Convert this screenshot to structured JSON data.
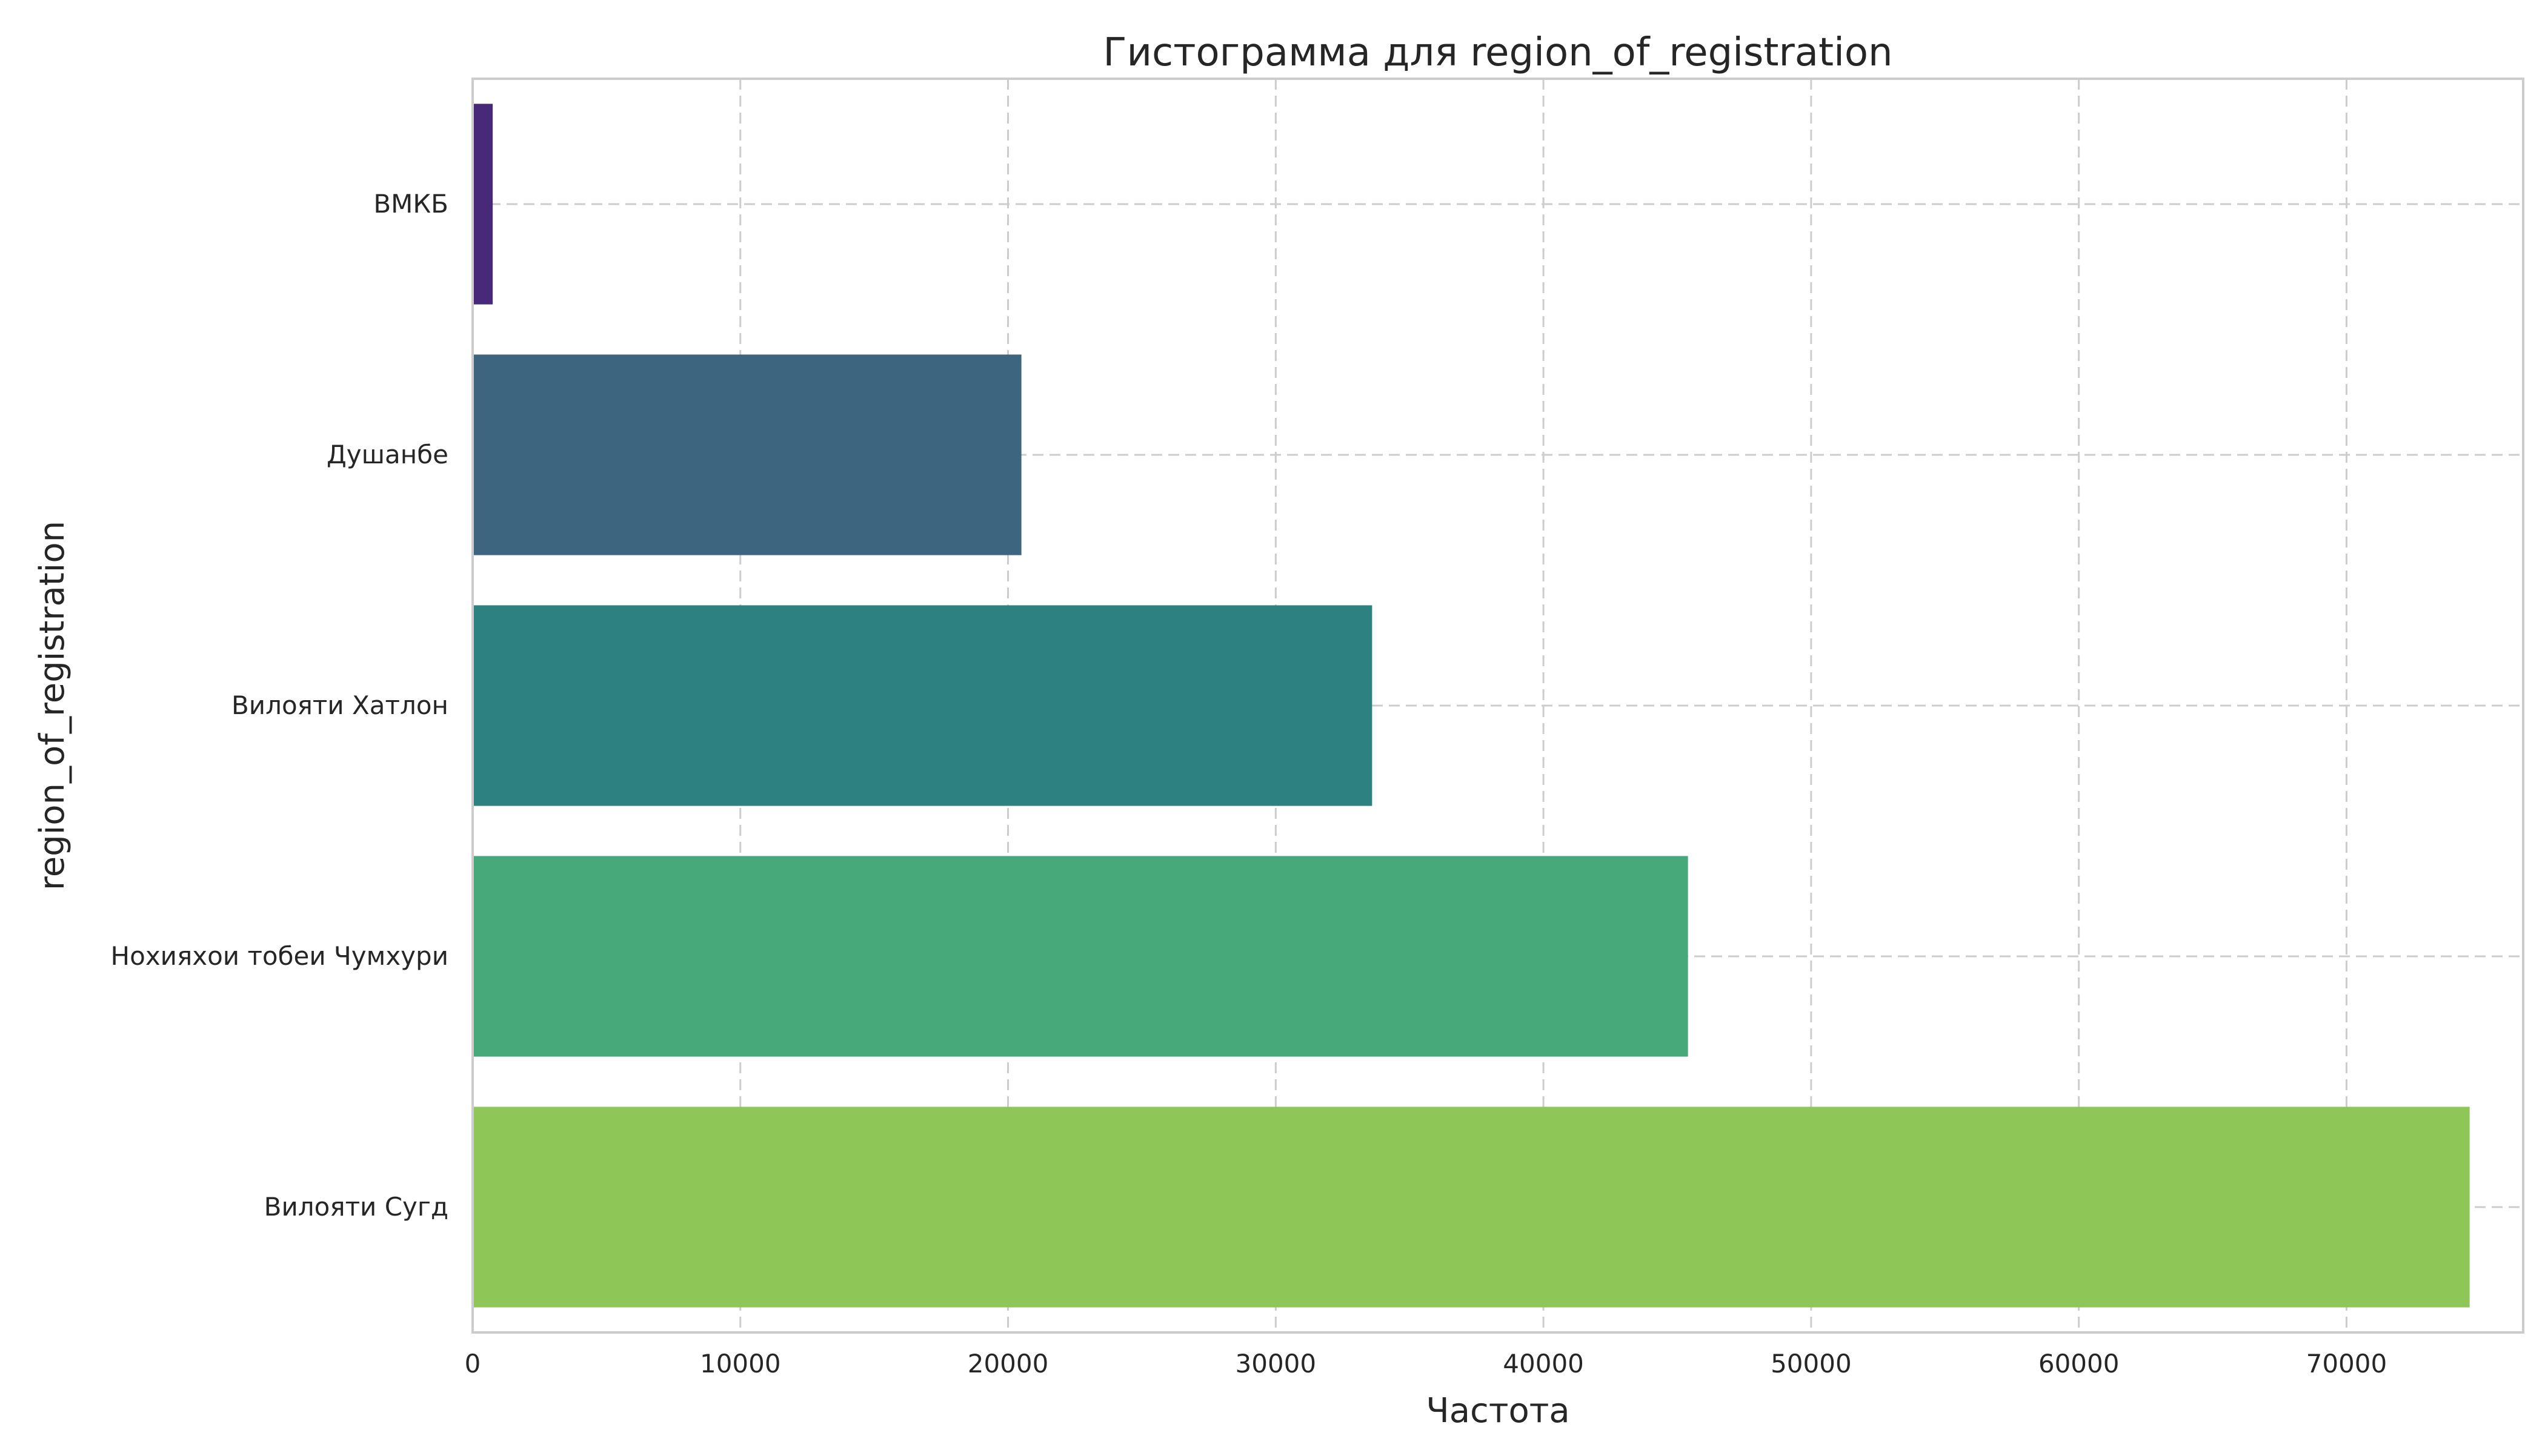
{
  "chart_data": {
    "type": "bar",
    "orientation": "horizontal",
    "title": "Гистограмма для region_of_registration",
    "xlabel": "Частота",
    "ylabel": "region_of_registration",
    "categories": [
      "ВМКБ",
      "Душанбе",
      "Вилояти Хатлон",
      "Нохияхои тобеи Чумхури",
      "Вилояти Сугд"
    ],
    "values": [
      750,
      20500,
      33600,
      45400,
      74600
    ],
    "colors": [
      "#482878",
      "#3e6580",
      "#2d8280",
      "#47a97a",
      "#8fc658"
    ],
    "xlim": [
      0,
      76600
    ],
    "xticks": [
      0,
      10000,
      20000,
      30000,
      40000,
      50000,
      60000,
      70000
    ],
    "grid": true,
    "legend": "none"
  }
}
